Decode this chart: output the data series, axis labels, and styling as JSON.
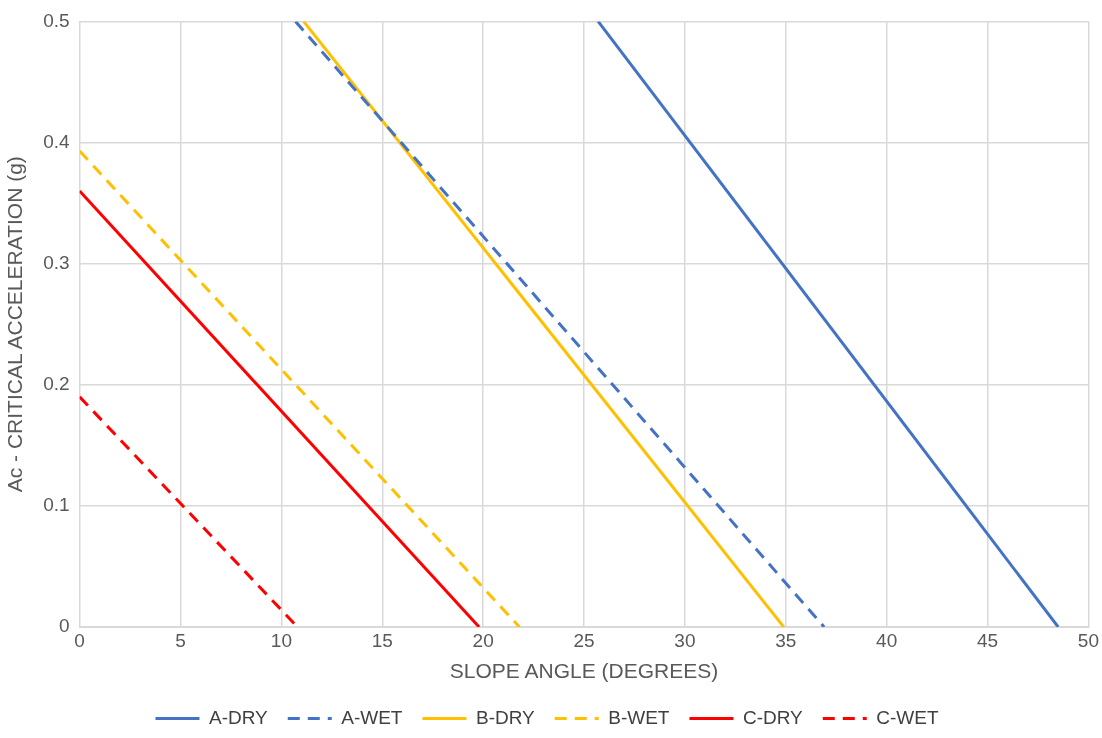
{
  "chart_data": {
    "type": "line",
    "xlabel": "SLOPE ANGLE (DEGREES)",
    "ylabel": "Ac - CRITICAL ACCELERATION (g)",
    "xlim": [
      0,
      50
    ],
    "xticks": [
      0,
      5,
      10,
      15,
      20,
      25,
      30,
      35,
      40,
      45,
      50
    ],
    "ylim": [
      0,
      0.5
    ],
    "yticks": [
      0,
      0.1,
      0.2,
      0.3,
      0.4,
      0.5
    ],
    "grid": true,
    "legend": "bottom",
    "marker": "none",
    "series": [
      {
        "name": "A-DRY",
        "color": "#4472c4",
        "line_style": "solid",
        "x": [
          25.7,
          48.5
        ],
        "values": [
          0.5,
          0
        ]
      },
      {
        "name": "A-WET",
        "color": "#4472c4",
        "line_style": "dashed",
        "x": [
          10.7,
          36.9
        ],
        "values": [
          0.5,
          0
        ]
      },
      {
        "name": "B-DRY",
        "color": "#ffc000",
        "line_style": "solid",
        "x": [
          11.1,
          34.9
        ],
        "values": [
          0.5,
          0
        ]
      },
      {
        "name": "B-WET",
        "color": "#ffc000",
        "line_style": "dashed",
        "x": [
          0,
          21.8
        ],
        "values": [
          0.393,
          0
        ]
      },
      {
        "name": "C-DRY",
        "color": "#ff0000",
        "line_style": "solid",
        "x": [
          0,
          19.8
        ],
        "values": [
          0.36,
          0
        ]
      },
      {
        "name": "C-WET",
        "color": "#ff0000",
        "line_style": "dashed",
        "x": [
          0,
          10.8
        ],
        "values": [
          0.19,
          0
        ]
      }
    ]
  }
}
